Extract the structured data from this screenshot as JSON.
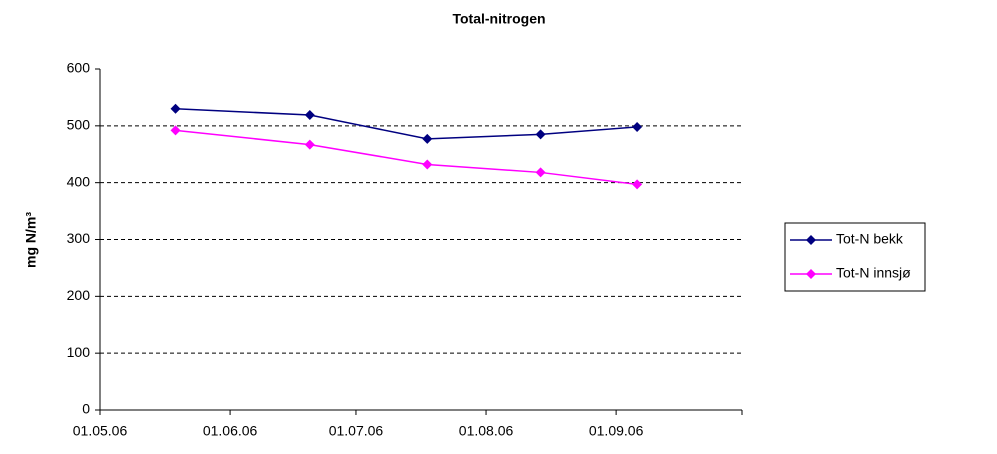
{
  "chart_data": {
    "type": "line",
    "title": "Total-nitrogen",
    "ylabel": "mg N/m³",
    "x": [
      "19.05.06",
      "20.06.06",
      "18.07.06",
      "14.08.06",
      "06.09.06"
    ],
    "series": [
      {
        "name": "Tot-N bekk",
        "color": "#000080",
        "values": [
          530,
          519,
          477,
          485,
          498
        ]
      },
      {
        "name": "Tot-N innsjø",
        "color": "#ff00ff",
        "values": [
          492,
          467,
          432,
          418,
          397
        ]
      }
    ],
    "xlim": [
      "01.05.06",
      "01.10.06"
    ],
    "xticks": [
      "01.05.06",
      "01.06.06",
      "01.07.06",
      "01.08.06",
      "01.09.06"
    ],
    "ylim": [
      0,
      600
    ],
    "yticks": [
      0,
      100,
      200,
      300,
      400,
      500,
      600
    ],
    "grid": true,
    "legend": "right"
  }
}
